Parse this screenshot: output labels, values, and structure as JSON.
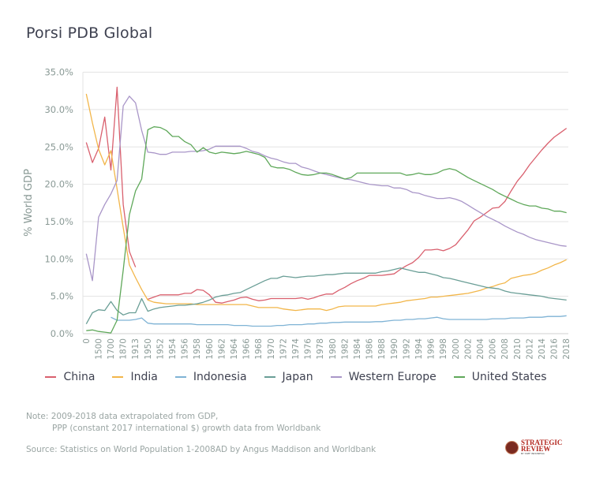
{
  "title": "Porsi PDB Global",
  "chart_data": {
    "type": "line",
    "title": "Porsi PDB Global",
    "ylabel": "% World GDP",
    "xlabel": "",
    "ylim": [
      0,
      35
    ],
    "y_ticks": [
      "0.0%",
      "5.0%",
      "10.0%",
      "15.0%",
      "20.0%",
      "25.0%",
      "30.0%",
      "35.0%"
    ],
    "grid": true,
    "legend_position": "bottom",
    "categories": [
      "0",
      "",
      "1500",
      "",
      "1700",
      "",
      "1870",
      "",
      "1913",
      "",
      "1950",
      "",
      "1952",
      "",
      "1954",
      "",
      "1956",
      "",
      "1958",
      "",
      "1960",
      "",
      "1962",
      "",
      "1964",
      "",
      "1966",
      "",
      "1968",
      "",
      "1970",
      "",
      "1972",
      "",
      "1974",
      "",
      "1976",
      "",
      "1978",
      "",
      "1980",
      "",
      "1982",
      "",
      "1984",
      "",
      "1986",
      "",
      "1988",
      "",
      "1990",
      "",
      "1992",
      "",
      "1994",
      "",
      "1996",
      "",
      "1998",
      "",
      "2000",
      "",
      "2002",
      "",
      "2004",
      "",
      "2006",
      "",
      "2008",
      "",
      "2010",
      "",
      "2012",
      "",
      "2014",
      "",
      "2016",
      "",
      "2018"
    ],
    "series": [
      {
        "name": "China",
        "color": "#d9606e",
        "values": [
          25.6,
          22.9,
          24.8,
          29.0,
          21.9,
          33.0,
          17.3,
          11.0,
          8.9,
          null,
          4.6,
          4.9,
          5.2,
          5.2,
          5.2,
          5.2,
          5.4,
          5.4,
          5.9,
          5.8,
          5.2,
          4.2,
          4.1,
          4.3,
          4.5,
          4.8,
          4.9,
          4.6,
          4.4,
          4.5,
          4.7,
          4.7,
          4.7,
          4.7,
          4.7,
          4.8,
          4.6,
          4.8,
          5.1,
          5.3,
          5.3,
          5.8,
          6.2,
          6.7,
          7.1,
          7.4,
          7.8,
          7.8,
          7.8,
          7.9,
          8.0,
          8.6,
          9.1,
          9.5,
          10.2,
          11.2,
          11.2,
          11.3,
          11.1,
          11.4,
          11.9,
          12.9,
          13.9,
          15.1,
          15.6,
          16.2,
          16.8,
          16.9,
          17.7,
          19.1,
          20.4,
          21.4,
          22.6,
          23.6,
          24.6,
          25.5,
          26.3,
          26.9,
          27.5
        ]
      },
      {
        "name": "India",
        "color": "#f2b64a",
        "values": [
          32.1,
          28.2,
          24.7,
          22.6,
          24.5,
          19.4,
          14.2,
          9.2,
          7.5,
          5.9,
          4.5,
          4.2,
          4.1,
          4.0,
          4.0,
          4.0,
          4.0,
          4.0,
          3.9,
          3.9,
          3.9,
          3.9,
          3.9,
          3.9,
          3.9,
          3.9,
          3.9,
          3.7,
          3.5,
          3.5,
          3.5,
          3.5,
          3.3,
          3.2,
          3.1,
          3.2,
          3.3,
          3.3,
          3.3,
          3.1,
          3.3,
          3.6,
          3.7,
          3.7,
          3.7,
          3.7,
          3.7,
          3.7,
          3.9,
          4.0,
          4.1,
          4.2,
          4.4,
          4.5,
          4.6,
          4.7,
          4.9,
          4.9,
          5.0,
          5.1,
          5.2,
          5.3,
          5.4,
          5.6,
          5.8,
          6.1,
          6.3,
          6.6,
          6.8,
          7.4,
          7.6,
          7.8,
          7.9,
          8.1,
          8.5,
          8.8,
          9.2,
          9.5,
          9.9
        ]
      },
      {
        "name": "Indonesia",
        "color": "#7fb3d5",
        "values": [
          null,
          null,
          null,
          null,
          2.2,
          1.8,
          1.8,
          1.8,
          1.9,
          2.1,
          1.4,
          1.3,
          1.3,
          1.3,
          1.3,
          1.3,
          1.3,
          1.3,
          1.2,
          1.2,
          1.2,
          1.2,
          1.2,
          1.2,
          1.1,
          1.1,
          1.1,
          1.0,
          1.0,
          1.0,
          1.0,
          1.1,
          1.1,
          1.2,
          1.2,
          1.2,
          1.3,
          1.3,
          1.4,
          1.4,
          1.5,
          1.5,
          1.55,
          1.55,
          1.55,
          1.55,
          1.55,
          1.6,
          1.6,
          1.7,
          1.8,
          1.8,
          1.9,
          1.9,
          2.0,
          2.0,
          2.1,
          2.2,
          2.0,
          1.9,
          1.9,
          1.9,
          1.9,
          1.9,
          1.9,
          1.9,
          2.0,
          2.0,
          2.0,
          2.1,
          2.1,
          2.1,
          2.2,
          2.2,
          2.2,
          2.3,
          2.3,
          2.3,
          2.4
        ]
      },
      {
        "name": "Japan",
        "color": "#6a9e96",
        "values": [
          1.3,
          2.8,
          3.2,
          3.1,
          4.3,
          3.1,
          2.5,
          2.8,
          2.8,
          4.7,
          3.0,
          3.3,
          3.5,
          3.6,
          3.7,
          3.8,
          3.8,
          3.9,
          4.0,
          4.2,
          4.5,
          4.9,
          5.1,
          5.2,
          5.4,
          5.5,
          5.9,
          6.3,
          6.7,
          7.1,
          7.4,
          7.4,
          7.7,
          7.6,
          7.5,
          7.6,
          7.7,
          7.7,
          7.8,
          7.9,
          7.9,
          8.0,
          8.1,
          8.1,
          8.1,
          8.1,
          8.1,
          8.1,
          8.3,
          8.4,
          8.6,
          8.8,
          8.6,
          8.4,
          8.2,
          8.2,
          8.0,
          7.8,
          7.5,
          7.4,
          7.2,
          7.0,
          6.8,
          6.6,
          6.4,
          6.2,
          6.1,
          6.0,
          5.7,
          5.5,
          5.4,
          5.3,
          5.2,
          5.1,
          5.0,
          4.8,
          4.7,
          4.6,
          4.5
        ]
      },
      {
        "name": "Western Europe",
        "color": "#a996c8",
        "values": [
          10.7,
          7.1,
          15.6,
          17.3,
          18.7,
          20.5,
          30.5,
          31.8,
          30.9,
          27.2,
          24.3,
          24.2,
          24.0,
          24.0,
          24.3,
          24.3,
          24.3,
          24.4,
          24.4,
          24.5,
          24.7,
          25.1,
          25.1,
          25.1,
          25.1,
          25.1,
          24.8,
          24.4,
          24.2,
          23.8,
          23.5,
          23.3,
          23.0,
          22.8,
          22.8,
          22.3,
          22.1,
          21.8,
          21.5,
          21.3,
          21.1,
          20.9,
          20.7,
          20.6,
          20.4,
          20.2,
          20.0,
          19.9,
          19.8,
          19.8,
          19.5,
          19.5,
          19.3,
          18.9,
          18.8,
          18.5,
          18.3,
          18.1,
          18.1,
          18.2,
          18.0,
          17.7,
          17.2,
          16.7,
          16.2,
          15.7,
          15.3,
          14.9,
          14.4,
          14.0,
          13.6,
          13.3,
          12.9,
          12.6,
          12.4,
          12.2,
          12.0,
          11.8,
          11.7
        ]
      },
      {
        "name": "United States",
        "color": "#5fa85a",
        "values": [
          0.4,
          0.5,
          0.3,
          0.2,
          0.1,
          1.8,
          8.5,
          15.9,
          19.1,
          20.7,
          27.3,
          27.7,
          27.6,
          27.2,
          26.4,
          26.4,
          25.7,
          25.3,
          24.3,
          24.9,
          24.3,
          24.1,
          24.3,
          24.2,
          24.1,
          24.2,
          24.4,
          24.2,
          24.0,
          23.6,
          22.4,
          22.2,
          22.2,
          22.0,
          21.6,
          21.3,
          21.2,
          21.3,
          21.5,
          21.5,
          21.3,
          21.0,
          20.7,
          20.9,
          21.5,
          21.5,
          21.5,
          21.5,
          21.5,
          21.5,
          21.5,
          21.5,
          21.2,
          21.3,
          21.5,
          21.3,
          21.3,
          21.5,
          21.9,
          22.1,
          21.9,
          21.4,
          20.9,
          20.5,
          20.1,
          19.7,
          19.3,
          18.8,
          18.4,
          18.0,
          17.6,
          17.3,
          17.1,
          17.1,
          16.8,
          16.7,
          16.4,
          16.4,
          16.2
        ]
      }
    ]
  },
  "notes": {
    "note_line1": "Note: 2009-2018 data extrapolated from GDP,",
    "note_line2": "PPP (constant 2017 international $) growth data from Worldbank",
    "source": "Source: Statistics on World Population 1-2008AD by Angus Maddison and Worldbank"
  },
  "logo": {
    "line1": "STRATEGIC",
    "line2": "REVIEW",
    "line3": "BY SSEF INDONESIA"
  }
}
